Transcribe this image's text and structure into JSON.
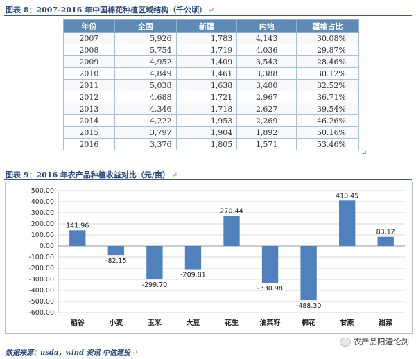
{
  "figure8": {
    "title": "图表 8：2007-2016 年中国棉花种植区域结构（千公顷）",
    "mark": "↵",
    "headers": [
      "年份",
      "全国",
      "新疆",
      "内地",
      "疆棉占比"
    ],
    "rows": [
      [
        "2007",
        "5,926",
        "1,783",
        "4,143",
        "30.08%"
      ],
      [
        "2008",
        "5,754",
        "1,719",
        "4,036",
        "29.87%"
      ],
      [
        "2009",
        "4,952",
        "1,409",
        "3,543",
        "28.46%"
      ],
      [
        "2010",
        "4,849",
        "1,461",
        "3,388",
        "30.12%"
      ],
      [
        "2011",
        "5,038",
        "1,638",
        "3,400",
        "32.52%"
      ],
      [
        "2012",
        "4,688",
        "1,721",
        "2,967",
        "36.71%"
      ],
      [
        "2013",
        "4,346",
        "1,718",
        "2,627",
        "39.54%"
      ],
      [
        "2014",
        "4,222",
        "1,953",
        "2,269",
        "46.26%"
      ],
      [
        "2015",
        "3,797",
        "1,904",
        "1,892",
        "50.16%"
      ],
      [
        "2016",
        "3,376",
        "1,805",
        "1,571",
        "53.46%"
      ]
    ],
    "row_end_mark": "↵"
  },
  "figure9": {
    "title": "图表 9：2016 年农产品种植收益对比（元/亩）",
    "mark": "↵"
  },
  "chart_data": {
    "type": "bar",
    "categories": [
      "稻谷",
      "小麦",
      "玉米",
      "大豆",
      "花生",
      "油菜籽",
      "棉花",
      "甘蔗",
      "甜菜"
    ],
    "values": [
      141.96,
      -82.15,
      -299.7,
      -209.81,
      270.44,
      -330.98,
      -488.3,
      410.45,
      83.12
    ],
    "value_labels": [
      "141.96",
      "-82.15",
      "-299.70",
      "-209.81",
      "270.44",
      "-330.98",
      "-488.30",
      "410.45",
      "83.12"
    ],
    "ylim": [
      -600,
      500
    ],
    "yticks": [
      "500.00",
      "400.00",
      "300.00",
      "200.00",
      "100.00",
      "0.00",
      "-100.00",
      "-200.00",
      "-300.00",
      "-400.00",
      "-500.00",
      "-600.00"
    ],
    "ytick_values": [
      500,
      400,
      300,
      200,
      100,
      0,
      -100,
      -200,
      -300,
      -400,
      -500,
      -600
    ],
    "grid": true,
    "legend": "none",
    "bar_color": "#4f81bd"
  },
  "source": {
    "text": "数据来源：usda，wind 资讯 中信建投",
    "mark": "↵"
  },
  "watermark": {
    "text": "农产品阳澄论剑"
  }
}
